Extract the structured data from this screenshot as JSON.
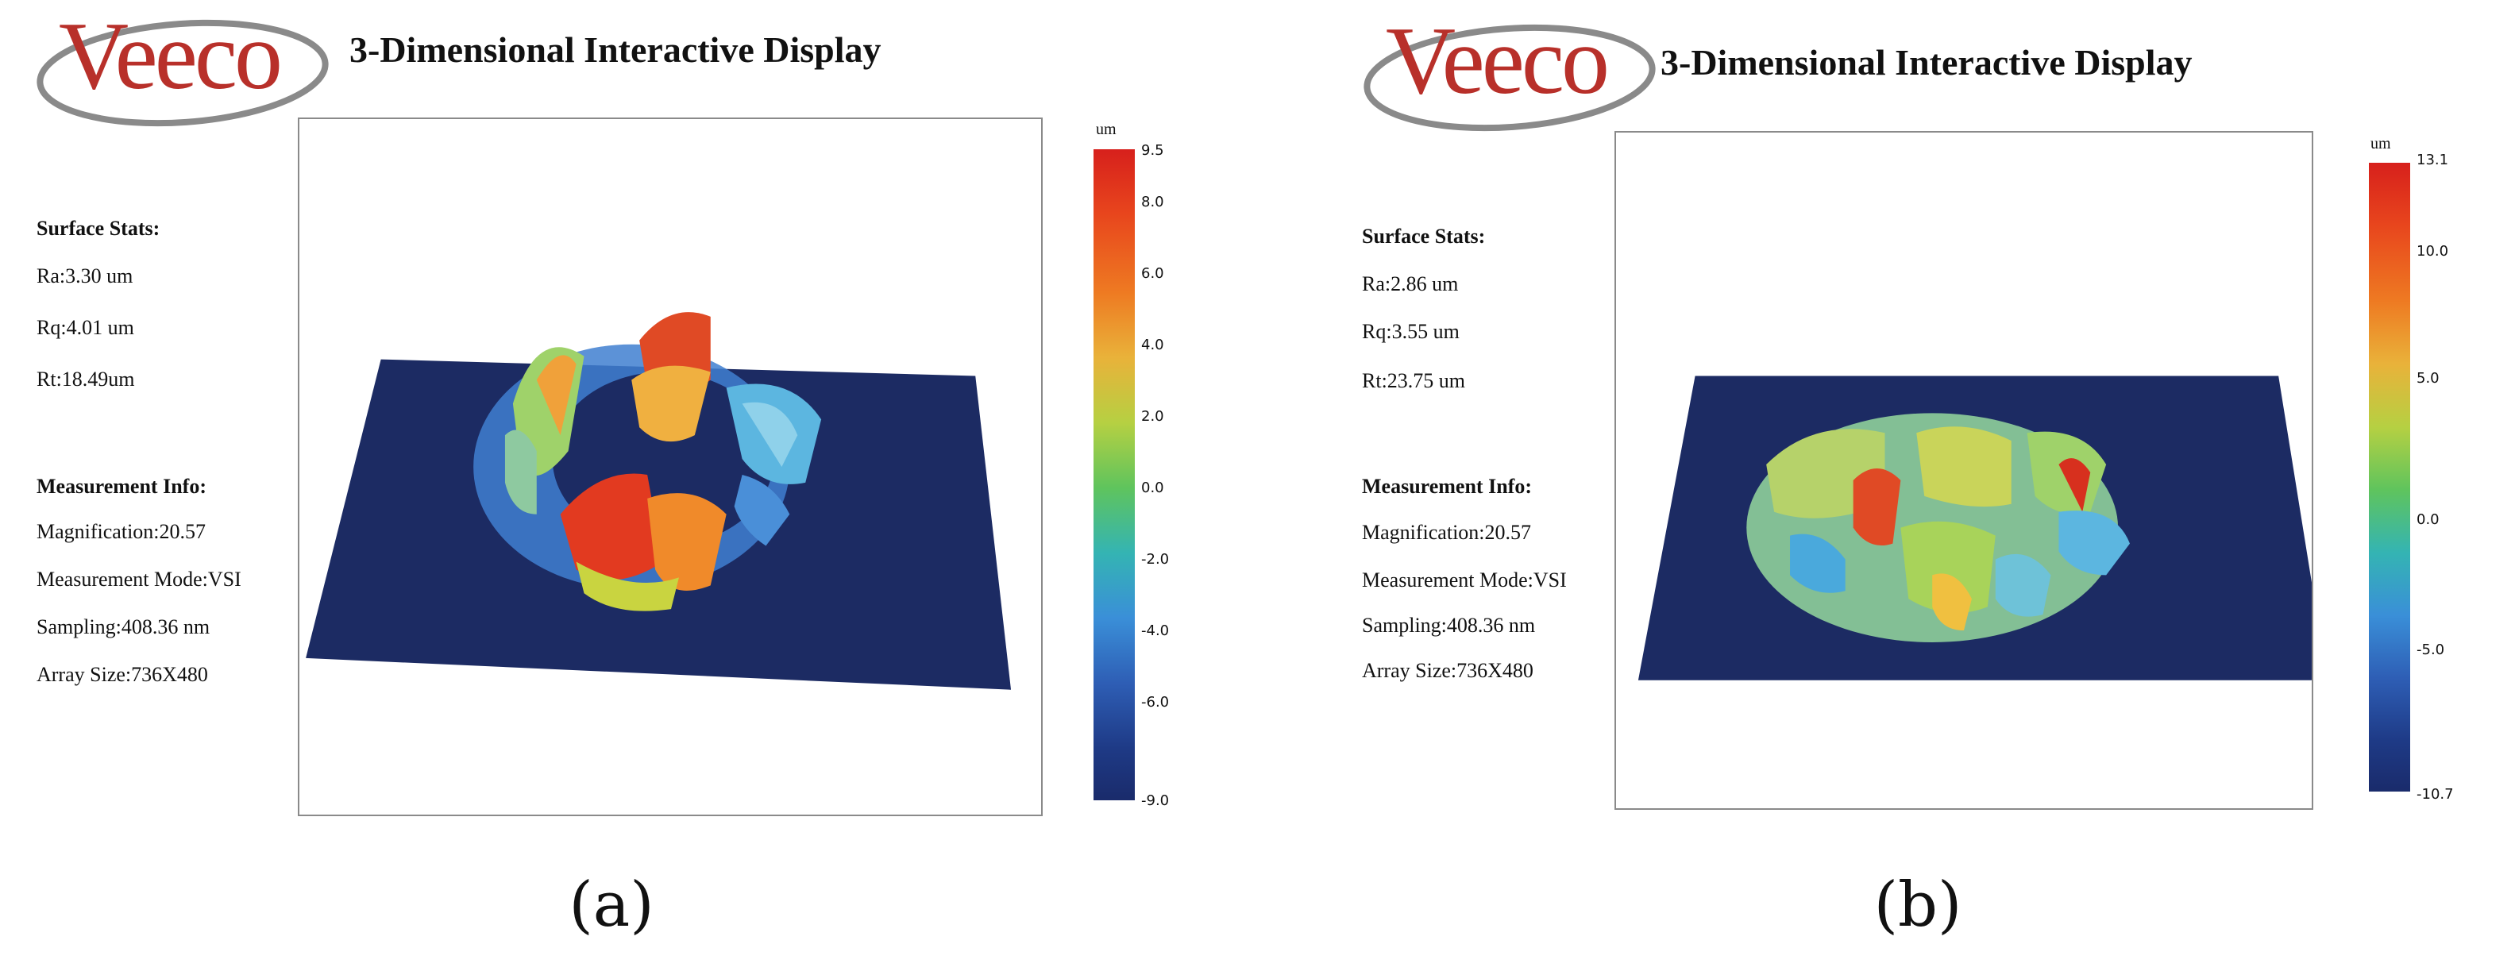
{
  "panels": [
    {
      "id": "a",
      "logo_text": "Veeco",
      "title": "3-Dimensional Interactive Display",
      "surface_stats_label": "Surface Stats:",
      "surface_stats": [
        "Ra:3.30 um",
        "Rq:4.01 um",
        "Rt:18.49um"
      ],
      "measurement_info_label": "Measurement Info:",
      "measurement_info": [
        "Magnification:20.57",
        "Measurement Mode:VSI",
        "Sampling:408.36 nm",
        "Array Size:736X480"
      ],
      "colorbar_unit": "um",
      "colorbar_ticks": [
        "9.5",
        "8.0",
        "6.0",
        "4.0",
        "2.0",
        "0.0",
        "-2.0",
        "-4.0",
        "-6.0",
        "-9.0"
      ],
      "panel_label": "(a)"
    },
    {
      "id": "b",
      "logo_text": "Veeco",
      "title": "3-Dimensional Interactive Display",
      "surface_stats_label": "Surface Stats:",
      "surface_stats": [
        "Ra:2.86 um",
        "Rq:3.55 um",
        "Rt:23.75 um"
      ],
      "measurement_info_label": "Measurement Info:",
      "measurement_info": [
        "Magnification:20.57",
        "Measurement Mode:VSI",
        "Sampling:408.36 nm",
        "Array Size:736X480"
      ],
      "colorbar_unit": "um",
      "colorbar_ticks": [
        "13.1",
        "10.0",
        "5.0",
        "0.0",
        "-5.0",
        "-10.7"
      ],
      "panel_label": "(b)"
    }
  ],
  "colors": {
    "logo_red": "#b8302a",
    "logo_swoosh": "#8a8a8a",
    "plate": "#1c2b63"
  }
}
